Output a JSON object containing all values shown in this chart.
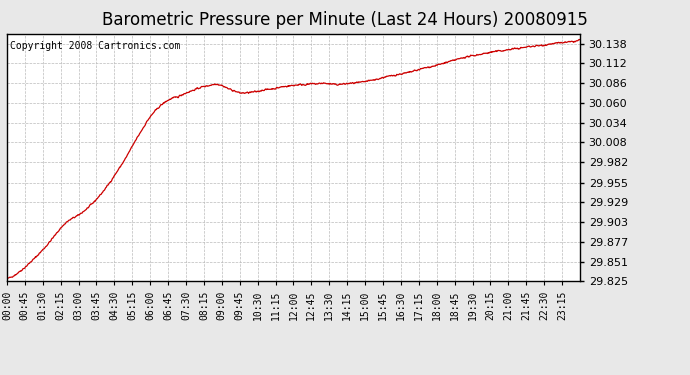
{
  "title": "Barometric Pressure per Minute (Last 24 Hours) 20080915",
  "copyright": "Copyright 2008 Cartronics.com",
  "line_color": "#cc0000",
  "background_color": "#e8e8e8",
  "plot_bg_color": "#ffffff",
  "grid_color": "#bbbbbb",
  "ylim": [
    29.825,
    30.151
  ],
  "yticks": [
    29.825,
    29.851,
    29.877,
    29.903,
    29.929,
    29.955,
    29.982,
    30.008,
    30.034,
    30.06,
    30.086,
    30.112,
    30.138
  ],
  "xtick_labels": [
    "00:00",
    "00:45",
    "01:30",
    "02:15",
    "03:00",
    "03:45",
    "04:30",
    "05:15",
    "06:00",
    "06:45",
    "07:30",
    "08:15",
    "09:00",
    "09:45",
    "10:30",
    "11:15",
    "12:00",
    "12:45",
    "13:30",
    "14:15",
    "15:00",
    "15:45",
    "16:30",
    "17:15",
    "18:00",
    "18:45",
    "19:30",
    "20:15",
    "21:00",
    "21:45",
    "22:30",
    "23:15"
  ],
  "title_fontsize": 12,
  "copyright_fontsize": 7,
  "ytick_fontsize": 8,
  "xtick_fontsize": 7
}
